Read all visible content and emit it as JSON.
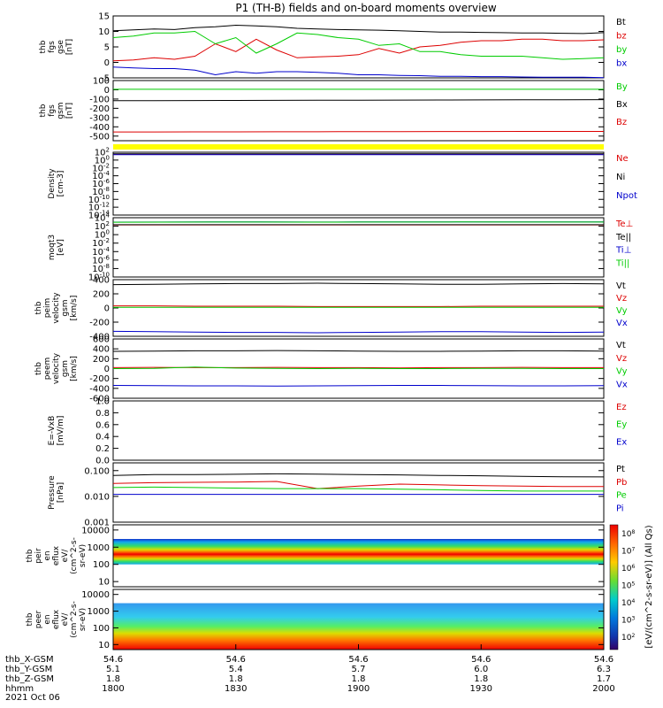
{
  "title": "P1 (TH-B) fields and on-board moments overview",
  "colors": {
    "black": "#000000",
    "red": "#dd0000",
    "green": "#00cc00",
    "blue": "#0000cc",
    "yellow": "#ffff00"
  },
  "time_axis": {
    "hhmm_ticks": [
      "1800",
      "1830",
      "1900",
      "1930",
      "2000"
    ],
    "row_labels": [
      "thb_X-GSM",
      "thb_Y-GSM",
      "thb_Z-GSM",
      "hhmm",
      "2021 Oct 06"
    ],
    "x_gsm": [
      "54.6",
      "54.6",
      "54.6",
      "54.6",
      "54.6"
    ],
    "y_gsm": [
      "5.1",
      "5.4",
      "5.7",
      "6.0",
      "6.3"
    ],
    "z_gsm": [
      "1.8",
      "1.8",
      "1.8",
      "1.8",
      "1.7"
    ]
  },
  "chart_data": [
    {
      "type": "line",
      "ylabel": [
        "thb",
        "fgs",
        "gse",
        "[nT]"
      ],
      "ylim": [
        -5,
        15
      ],
      "yticks": [
        "15",
        "10",
        "5",
        "0",
        "-5"
      ],
      "series": [
        {
          "name": "Bt",
          "color": "black",
          "values": [
            10.2,
            10.5,
            10.8,
            10.6,
            11.2,
            11.5,
            12.0,
            11.8,
            11.5,
            11.0,
            10.8,
            10.6,
            10.5,
            10.4,
            10.2,
            10.0,
            9.8,
            9.8,
            9.7,
            9.6,
            9.5,
            9.5,
            9.4,
            9.3,
            9.6
          ]
        },
        {
          "name": "bz",
          "color": "red",
          "values": [
            0.5,
            0.8,
            1.5,
            1.0,
            2.0,
            6.0,
            3.5,
            7.5,
            4.0,
            1.5,
            1.8,
            2.0,
            2.5,
            4.5,
            3.0,
            5.0,
            5.5,
            6.5,
            7.0,
            7.0,
            7.5,
            7.5,
            7.0,
            7.0,
            7.3
          ]
        },
        {
          "name": "by",
          "color": "green",
          "values": [
            8.0,
            8.5,
            9.5,
            9.5,
            10.0,
            6.0,
            8.0,
            3.0,
            6.0,
            9.5,
            9.0,
            8.0,
            7.5,
            5.5,
            6.0,
            3.5,
            3.5,
            2.5,
            2.0,
            2.0,
            2.0,
            1.5,
            1.0,
            1.2,
            1.5
          ]
        },
        {
          "name": "bx",
          "color": "blue",
          "values": [
            -1.5,
            -1.8,
            -2.0,
            -2.0,
            -2.5,
            -4.0,
            -3.0,
            -3.5,
            -3.0,
            -3.0,
            -3.2,
            -3.5,
            -4.0,
            -4.0,
            -4.2,
            -4.3,
            -4.5,
            -4.5,
            -4.6,
            -4.6,
            -4.7,
            -4.8,
            -4.8,
            -4.8,
            -4.9
          ]
        }
      ]
    },
    {
      "type": "line",
      "ylabel": [
        "thb",
        "fgs",
        "gsm",
        "[nT]"
      ],
      "ylim": [
        -550,
        100
      ],
      "yticks": [
        "100",
        "0",
        "-100",
        "-200",
        "-300",
        "-400",
        "-500"
      ],
      "series": [
        {
          "name": "By",
          "color": "green",
          "values": [
            5,
            5,
            5,
            5,
            5,
            5,
            5,
            5,
            5,
            5,
            5,
            5,
            5
          ]
        },
        {
          "name": "Bx",
          "color": "black",
          "values": [
            -118,
            -117,
            -116,
            -115,
            -114,
            -113,
            -112,
            -111,
            -110,
            -109,
            -108,
            -107,
            -106
          ]
        },
        {
          "name": "Bz",
          "color": "red",
          "values": [
            -455,
            -455,
            -454,
            -454,
            -453,
            -453,
            -452,
            -452,
            -451,
            -451,
            -450,
            -450,
            -450
          ]
        }
      ]
    },
    {
      "type": "line",
      "ylabel": [
        "Density",
        "[cm-3]"
      ],
      "log": true,
      "ylim": [
        1e-14,
        100
      ],
      "yticks": [
        "10^2",
        "10^0",
        "10^-2",
        "10^-4",
        "10^-6",
        "10^-8",
        "10^-10",
        "10^-12",
        "10^-14"
      ],
      "series": [
        {
          "name": "Ne",
          "color": "red",
          "values": [
            30,
            30,
            30,
            30,
            30,
            30,
            30,
            30,
            30,
            30,
            30
          ]
        },
        {
          "name": "Ni",
          "color": "black",
          "values": [
            40,
            40,
            40,
            40,
            40,
            40,
            40,
            40,
            40,
            40,
            40
          ]
        },
        {
          "name": "Npot",
          "color": "blue",
          "values": [
            25,
            25,
            25,
            25,
            25,
            25,
            25,
            25,
            25,
            25,
            25
          ]
        }
      ]
    },
    {
      "type": "line",
      "ylabel": [
        "moqt3",
        "[eV]"
      ],
      "log": true,
      "ylim": [
        1e-10,
        10000
      ],
      "yticks": [
        "10^4",
        "10^2",
        "10^0",
        "10^-2",
        "10^-4",
        "10^-6",
        "10^-8",
        "10^-10"
      ],
      "series": [
        {
          "name": "Te⊥",
          "color": "red",
          "values": [
            200,
            200,
            200,
            200,
            200,
            200,
            200,
            200,
            200,
            200,
            200
          ]
        },
        {
          "name": "Te||",
          "color": "black",
          "values": [
            220,
            220,
            220,
            220,
            220,
            220,
            220,
            220,
            220,
            220,
            220
          ]
        },
        {
          "name": "Ti⊥",
          "color": "blue",
          "values": [
            900,
            950,
            1000,
            1000,
            950,
            1000,
            1000,
            1050,
            1000,
            1000,
            1000
          ]
        },
        {
          "name": "Ti||",
          "color": "green",
          "values": [
            850,
            900,
            950,
            950,
            900,
            950,
            950,
            1000,
            950,
            950,
            950
          ]
        }
      ]
    },
    {
      "type": "line",
      "ylabel": [
        "thb",
        "peim",
        "velocity",
        "gsm",
        "[km/s]"
      ],
      "ylim": [
        -400,
        400
      ],
      "yticks": [
        "400",
        "200",
        "0",
        "-200",
        "-400"
      ],
      "series": [
        {
          "name": "Vt",
          "color": "black",
          "values": [
            330,
            335,
            340,
            345,
            345,
            350,
            345,
            340,
            335,
            335,
            340,
            345,
            340
          ]
        },
        {
          "name": "Vz",
          "color": "red",
          "values": [
            30,
            30,
            25,
            25,
            25,
            20,
            20,
            20,
            20,
            25,
            25,
            25,
            25
          ]
        },
        {
          "name": "Vy",
          "color": "green",
          "values": [
            10,
            10,
            10,
            10,
            10,
            10,
            10,
            10,
            10,
            10,
            10,
            10,
            10
          ]
        },
        {
          "name": "Vx",
          "color": "blue",
          "values": [
            -330,
            -335,
            -340,
            -345,
            -345,
            -350,
            -345,
            -340,
            -335,
            -335,
            -340,
            -345,
            -340
          ]
        }
      ]
    },
    {
      "type": "line",
      "ylabel": [
        "thb",
        "peem",
        "velocity",
        "gsm",
        "[km/s]"
      ],
      "ylim": [
        -600,
        600
      ],
      "yticks": [
        "600",
        "400",
        "200",
        "0",
        "-200",
        "-400",
        "-600"
      ],
      "series": [
        {
          "name": "Vt",
          "color": "black",
          "values": [
            350,
            355,
            360,
            360,
            365,
            360,
            355,
            350,
            350,
            355,
            360,
            360,
            355
          ]
        },
        {
          "name": "Vz",
          "color": "red",
          "values": [
            20,
            25,
            20,
            20,
            25,
            20,
            20,
            15,
            20,
            20,
            25,
            20,
            20
          ]
        },
        {
          "name": "Vy",
          "color": "green",
          "values": [
            0,
            5,
            30,
            10,
            5,
            0,
            5,
            0,
            0,
            5,
            5,
            0,
            0
          ]
        },
        {
          "name": "Vx",
          "color": "blue",
          "values": [
            -340,
            -345,
            -350,
            -350,
            -355,
            -350,
            -345,
            -340,
            -340,
            -345,
            -350,
            -350,
            -345
          ]
        }
      ]
    },
    {
      "type": "line",
      "ylabel": [
        "E=-VxB",
        "[mV/m]"
      ],
      "ylim": [
        0,
        1
      ],
      "yticks": [
        "1.0",
        "0.8",
        "0.6",
        "0.4",
        "0.2",
        "0.0"
      ],
      "series": [
        {
          "name": "Ez",
          "color": "red",
          "values": []
        },
        {
          "name": "Ey",
          "color": "green",
          "values": []
        },
        {
          "name": "Ex",
          "color": "blue",
          "values": []
        }
      ]
    },
    {
      "type": "line",
      "ylabel": [
        "Pressure",
        "[nPa]"
      ],
      "log": true,
      "ylim": [
        0.001,
        0.2
      ],
      "yticks": [
        "0.100",
        "0.010",
        "0.001"
      ],
      "series": [
        {
          "name": "Pt",
          "color": "black",
          "values": [
            0.065,
            0.07,
            0.07,
            0.072,
            0.075,
            0.073,
            0.07,
            0.068,
            0.065,
            0.063,
            0.06,
            0.058,
            0.057
          ]
        },
        {
          "name": "Pb",
          "color": "red",
          "values": [
            0.032,
            0.034,
            0.035,
            0.036,
            0.038,
            0.02,
            0.025,
            0.03,
            0.028,
            0.026,
            0.025,
            0.024,
            0.024
          ]
        },
        {
          "name": "Pe",
          "color": "green",
          "values": [
            0.022,
            0.023,
            0.022,
            0.021,
            0.02,
            0.02,
            0.02,
            0.019,
            0.018,
            0.017,
            0.016,
            0.016,
            0.016
          ]
        },
        {
          "name": "Pi",
          "color": "blue",
          "values": [
            0.012,
            0.012,
            0.012,
            0.012,
            0.012,
            0.012,
            0.012,
            0.012,
            0.012,
            0.012,
            0.012,
            0.012,
            0.012
          ]
        }
      ]
    },
    {
      "type": "heatmap",
      "ylabel": [
        "thb",
        "peir",
        "en",
        "eflux",
        "eV/",
        "(cm^2-s-",
        "sr-eV)"
      ],
      "log": true,
      "ylim": [
        5,
        20000
      ],
      "yticks": [
        "10000",
        "1000",
        "100",
        "10"
      ],
      "band_energy_range": [
        100,
        3000
      ]
    },
    {
      "type": "heatmap",
      "ylabel": [
        "thb",
        "peer",
        "en",
        "eflux",
        "eV/",
        "(cm^2-s-",
        "sr-eV)"
      ],
      "log": true,
      "ylim": [
        5,
        20000
      ],
      "yticks": [
        "10000",
        "1000",
        "100",
        "10"
      ],
      "band_energy_range": [
        5,
        3000
      ]
    }
  ],
  "colorbar": {
    "label": "[eV/(cm^2-s-sr-eV)] (All Qs)",
    "ticks": [
      "10^8",
      "10^7",
      "10^6",
      "10^5",
      "10^4",
      "10^3",
      "10^2"
    ]
  }
}
